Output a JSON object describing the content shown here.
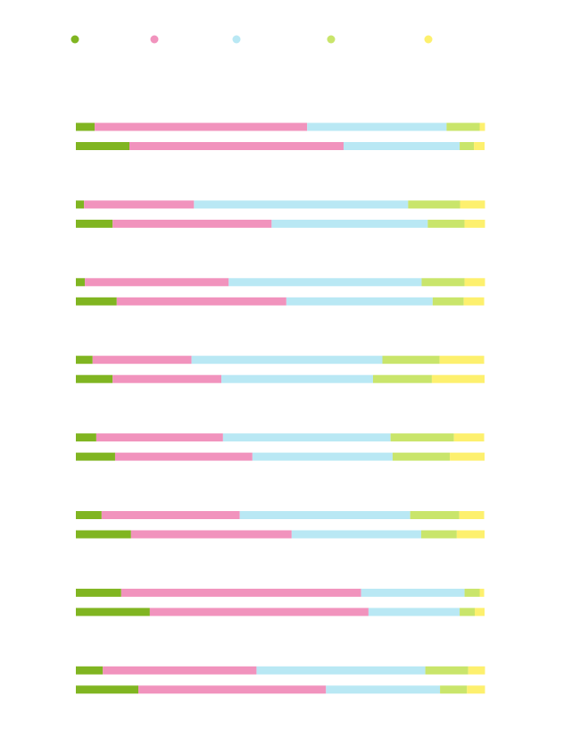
{
  "chart_data": {
    "type": "stacked-bar-horizontal",
    "categories": [
      null,
      null,
      null,
      null,
      null,
      null,
      null,
      null,
      null,
      null,
      null,
      null,
      null,
      null,
      null,
      null
    ],
    "xlim": [
      0,
      100
    ],
    "series": [
      {
        "color": "#80b521",
        "values": [
          4.6,
          13.1,
          2.0,
          9.0,
          2.2,
          10.0,
          4.1,
          9.0,
          5.0,
          9.6,
          6.3,
          13.5,
          11.1,
          18.1,
          6.6,
          15.3
        ]
      },
      {
        "color": "#f193bd",
        "values": [
          52.0,
          52.4,
          26.9,
          38.9,
          35.2,
          41.5,
          24.2,
          26.6,
          31.0,
          33.6,
          33.8,
          39.3,
          58.7,
          53.5,
          37.6,
          45.9
        ]
      },
      {
        "color": "#b9e8f4",
        "values": [
          34.1,
          28.4,
          52.4,
          38.2,
          47.2,
          35.8,
          46.7,
          37.1,
          41.0,
          34.3,
          41.7,
          31.7,
          25.3,
          22.3,
          41.3,
          27.9
        ]
      },
      {
        "color": "#c9e56b",
        "values": [
          8.1,
          3.5,
          12.7,
          9.0,
          10.5,
          7.6,
          14.0,
          14.4,
          15.5,
          14.0,
          12.0,
          8.7,
          3.7,
          3.7,
          10.5,
          6.6
        ]
      },
      {
        "color": "#fdf06e",
        "values": [
          1.3,
          2.6,
          6.1,
          5.0,
          5.0,
          5.0,
          10.9,
          12.9,
          7.4,
          8.5,
          6.1,
          6.8,
          1.1,
          2.4,
          4.1,
          4.4
        ]
      }
    ]
  }
}
